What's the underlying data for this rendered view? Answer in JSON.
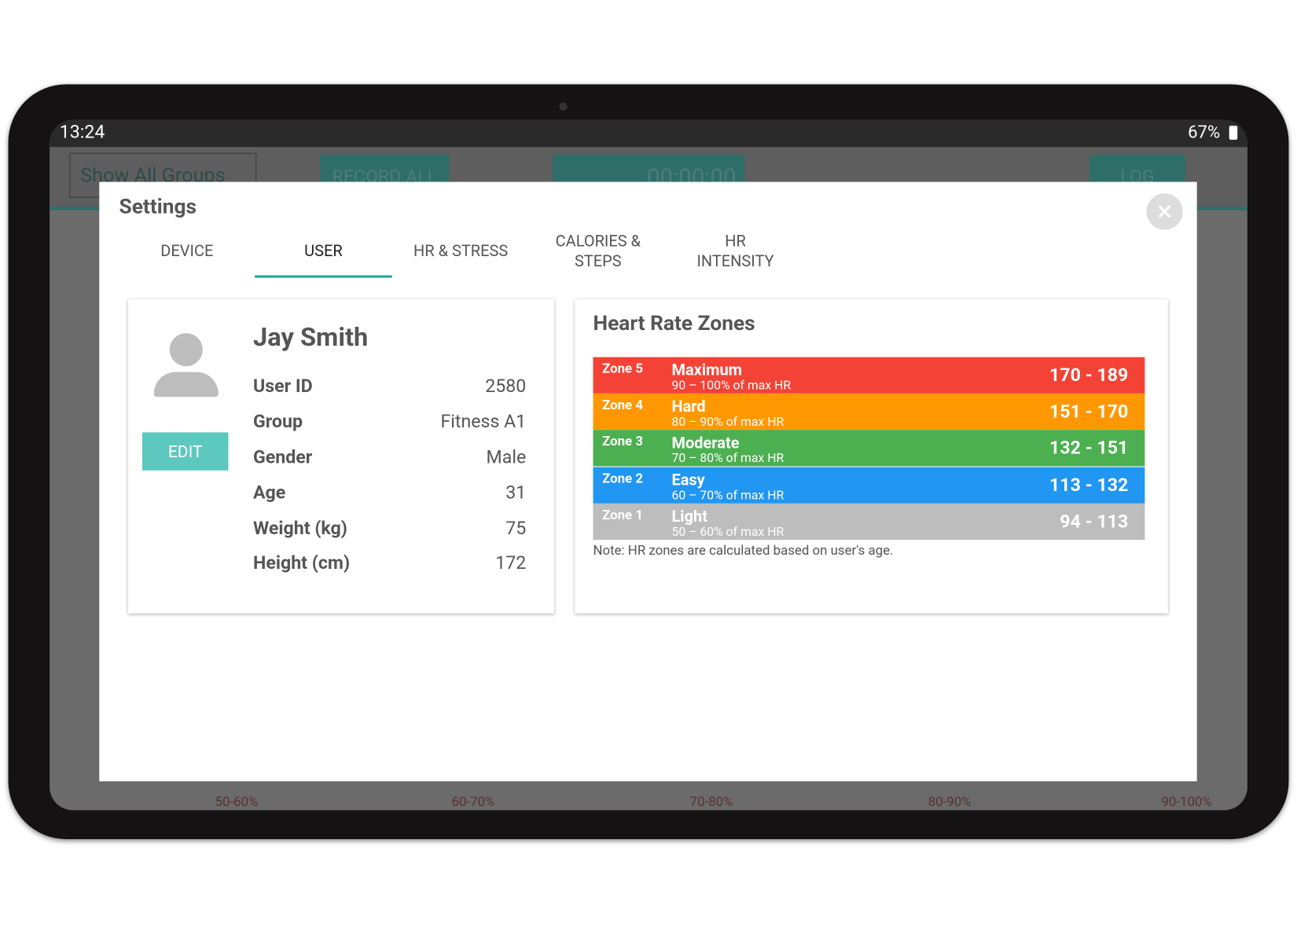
{
  "status_bar": {
    "time": "13:24",
    "battery": "67%"
  },
  "background": {
    "group_select": "Show All Groups",
    "record_button": "RECORD ALL",
    "timer": "00:00:00",
    "log_button": "LOG",
    "zone_labels": [
      "50-60%",
      "60-70%",
      "70-80%",
      "80-90%",
      "90-100%"
    ]
  },
  "dialog": {
    "title": "Settings",
    "tabs": [
      "DEVICE",
      "USER",
      "HR & STRESS",
      "CALORIES & STEPS",
      "HR INTENSITY"
    ],
    "active_tab": "USER",
    "user": {
      "name": "Jay Smith",
      "edit_button": "EDIT",
      "fields": [
        {
          "label": "User ID",
          "value": "2580"
        },
        {
          "label": "Group",
          "value": "Fitness A1"
        },
        {
          "label": "Gender",
          "value": "Male"
        },
        {
          "label": "Age",
          "value": "31"
        },
        {
          "label": "Weight (kg)",
          "value": "75"
        },
        {
          "label": "Height (cm)",
          "value": "172"
        }
      ]
    },
    "zones": {
      "title": "Heart Rate Zones",
      "rows": [
        {
          "zone": "Zone 5",
          "name": "Maximum",
          "description": "90 – 100% of max HR",
          "range": "170 - 189",
          "color": "#f44336"
        },
        {
          "zone": "Zone 4",
          "name": "Hard",
          "description": "80 – 90% of max HR",
          "range": "151 - 170",
          "color": "#ff9800"
        },
        {
          "zone": "Zone 3",
          "name": "Moderate",
          "description": "70 – 80% of max HR",
          "range": "132 - 151",
          "color": "#4caf50"
        },
        {
          "zone": "Zone 2",
          "name": "Easy",
          "description": "60 – 70% of max HR",
          "range": "113 - 132",
          "color": "#2196f3"
        },
        {
          "zone": "Zone 1",
          "name": "Light",
          "description": "50 – 60% of max HR",
          "range": "94 - 113",
          "color": "#bdbdbd"
        }
      ],
      "note": "Note: HR zones are calculated based on user's age."
    }
  }
}
